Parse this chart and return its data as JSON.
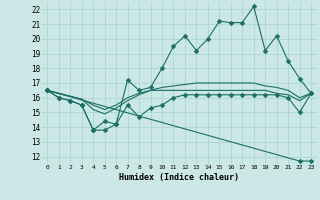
{
  "xlabel": "Humidex (Indice chaleur)",
  "xlim": [
    -0.5,
    23.5
  ],
  "ylim": [
    11.5,
    22.5
  ],
  "xticks": [
    0,
    1,
    2,
    3,
    4,
    5,
    6,
    7,
    8,
    9,
    10,
    11,
    12,
    13,
    14,
    15,
    16,
    17,
    18,
    19,
    20,
    21,
    22,
    23
  ],
  "yticks": [
    12,
    13,
    14,
    15,
    16,
    17,
    18,
    19,
    20,
    21,
    22
  ],
  "bg_color": "#cce8e6",
  "grid_color": "#b0d8d5",
  "line_color": "#1a6e65",
  "lines": [
    {
      "x": [
        0,
        1,
        2,
        3,
        4,
        5,
        6,
        7,
        8,
        9,
        10,
        11,
        12,
        13,
        14,
        15,
        16,
        17,
        18,
        19,
        20,
        21,
        22,
        23
      ],
      "y": [
        16.5,
        16.0,
        15.8,
        15.5,
        13.8,
        13.8,
        14.2,
        17.2,
        16.5,
        16.7,
        18.0,
        19.5,
        20.2,
        19.2,
        20.0,
        21.2,
        21.1,
        21.1,
        22.2,
        19.2,
        20.2,
        18.5,
        17.3,
        16.3
      ],
      "has_marker": true,
      "markersize": 2.5,
      "linewidth": 0.8
    },
    {
      "x": [
        0,
        1,
        2,
        3,
        4,
        5,
        6,
        7,
        8,
        9,
        10,
        11,
        12,
        13,
        14,
        15,
        16,
        17,
        18,
        19,
        20,
        21,
        22,
        23
      ],
      "y": [
        16.5,
        16.3,
        16.1,
        15.9,
        15.5,
        15.2,
        15.5,
        16.0,
        16.3,
        16.5,
        16.5,
        16.5,
        16.5,
        16.5,
        16.5,
        16.5,
        16.5,
        16.5,
        16.5,
        16.5,
        16.3,
        16.2,
        15.8,
        16.3
      ],
      "has_marker": false,
      "linewidth": 0.8
    },
    {
      "x": [
        0,
        1,
        2,
        3,
        4,
        5,
        6,
        7,
        8,
        9,
        10,
        11,
        12,
        13,
        14,
        15,
        16,
        17,
        18,
        19,
        20,
        21,
        22,
        23
      ],
      "y": [
        16.5,
        16.3,
        16.1,
        15.9,
        15.2,
        14.9,
        15.3,
        15.8,
        16.2,
        16.5,
        16.7,
        16.8,
        16.9,
        17.0,
        17.0,
        17.0,
        17.0,
        17.0,
        17.0,
        16.8,
        16.7,
        16.5,
        16.0,
        16.3
      ],
      "has_marker": false,
      "linewidth": 0.8
    },
    {
      "x": [
        0,
        1,
        2,
        3,
        4,
        5,
        6,
        7,
        8,
        9,
        10,
        11,
        12,
        13,
        14,
        15,
        16,
        17,
        18,
        19,
        20,
        21,
        22,
        23
      ],
      "y": [
        16.5,
        16.0,
        15.8,
        15.5,
        13.8,
        14.4,
        14.2,
        15.5,
        14.7,
        15.3,
        15.5,
        16.0,
        16.2,
        16.2,
        16.2,
        16.2,
        16.2,
        16.2,
        16.2,
        16.2,
        16.2,
        16.0,
        15.0,
        16.3
      ],
      "has_marker": true,
      "markersize": 2.5,
      "linewidth": 0.8
    },
    {
      "x": [
        0,
        22,
        23
      ],
      "y": [
        16.5,
        11.7,
        11.7
      ],
      "has_marker": true,
      "markersize": 2.5,
      "linewidth": 0.8
    }
  ]
}
